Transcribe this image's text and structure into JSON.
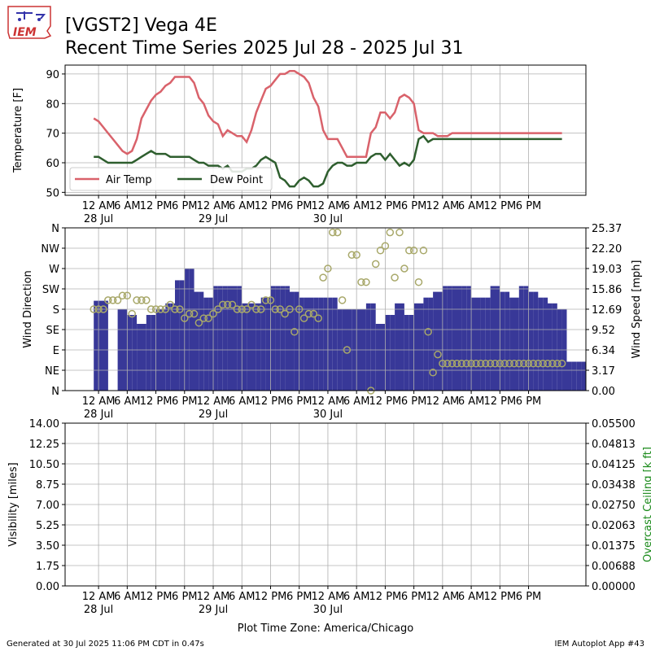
{
  "header": {
    "title_line1": "[VGST2] Vega 4E",
    "title_line2": "Recent Time Series 2025 Jul 28 - 2025 Jul 31",
    "logo_text": "IEM"
  },
  "footer": {
    "generated": "Generated at 30 Jul 2025 11:06 PM CDT in 0.47s",
    "app": "IEM Autoplot App #43",
    "timezone": "Plot Time Zone: America/Chicago"
  },
  "colors": {
    "air_temp": "#d9626b",
    "dew_point": "#2e5e2e",
    "wind_bar": "#383898",
    "wind_dir_marker": "#a8a86a",
    "ceiling_label": "#1a8a1a",
    "grid": "#b0b0b0"
  },
  "chart_data": [
    {
      "type": "line",
      "ylabel": "Temperature [F]",
      "xlim": [
        -7,
        102
      ],
      "ylim": [
        49,
        93
      ],
      "yticks": [
        50,
        60,
        70,
        80,
        90
      ],
      "grid": true,
      "legend_position": "lower-left",
      "x_ticks": {
        "positions": [
          0,
          6,
          12,
          18,
          24,
          30,
          36,
          42,
          48,
          54,
          60,
          66,
          72,
          78,
          84,
          90
        ],
        "labels": [
          "12 AM",
          "6 AM",
          "12 PM",
          "6 PM",
          "12 AM",
          "6 AM",
          "12 PM",
          "6 PM",
          "12 AM",
          "6 AM",
          "12 PM",
          "6 PM",
          "12 AM",
          "6 AM",
          "12 PM",
          "6 PM"
        ],
        "date_labels": [
          "28 Jul",
          "",
          "",
          "",
          "29 Jul",
          "",
          "",
          "",
          "30 Jul",
          "",
          "",
          "",
          "",
          "",
          "",
          ""
        ]
      },
      "series": [
        {
          "name": "Air Temp",
          "x": [
            -1,
            0,
            1,
            2,
            3,
            4,
            5,
            6,
            7,
            8,
            9,
            10,
            11,
            12,
            13,
            14,
            15,
            16,
            17,
            18,
            19,
            20,
            21,
            22,
            23,
            24,
            25,
            26,
            27,
            28,
            29,
            30,
            31,
            32,
            33,
            34,
            35,
            36,
            37,
            38,
            39,
            40,
            41,
            42,
            43,
            44,
            45,
            46,
            47,
            48,
            49,
            50,
            51,
            52,
            53,
            54,
            55,
            56,
            57,
            58,
            59,
            60,
            61,
            62,
            63,
            64,
            65,
            66,
            67,
            68,
            69,
            70,
            71,
            72,
            73,
            74,
            75,
            76,
            77,
            78,
            79,
            80,
            81,
            82,
            83,
            84,
            85,
            86,
            87,
            88,
            89,
            90,
            91,
            92,
            93,
            94,
            95,
            96,
            97
          ],
          "values": [
            75,
            74,
            72,
            70,
            68,
            66,
            64,
            63,
            64,
            68,
            75,
            78,
            81,
            83,
            84,
            86,
            87,
            89,
            89,
            89,
            89,
            87,
            82,
            80,
            76,
            74,
            73,
            69,
            71,
            70,
            69,
            69,
            67,
            71,
            77,
            81,
            85,
            86,
            88,
            90,
            90,
            91,
            91,
            90,
            89,
            87,
            82,
            79,
            71,
            68,
            68,
            68,
            65,
            62,
            62,
            62,
            62,
            62,
            70,
            72,
            77,
            77,
            75,
            77,
            82,
            83,
            82,
            80,
            71,
            70,
            70,
            70,
            69,
            69,
            69,
            70,
            70,
            70,
            70,
            70,
            70,
            70,
            70,
            70,
            70,
            70,
            70,
            70,
            70,
            70,
            70,
            70,
            70,
            70,
            70,
            70,
            70,
            70,
            70
          ]
        },
        {
          "name": "Dew Point",
          "x": [
            -1,
            0,
            1,
            2,
            3,
            4,
            5,
            6,
            7,
            8,
            9,
            10,
            11,
            12,
            13,
            14,
            15,
            16,
            17,
            18,
            19,
            20,
            21,
            22,
            23,
            24,
            25,
            26,
            27,
            28,
            29,
            30,
            31,
            32,
            33,
            34,
            35,
            36,
            37,
            38,
            39,
            40,
            41,
            42,
            43,
            44,
            45,
            46,
            47,
            48,
            49,
            50,
            51,
            52,
            53,
            54,
            55,
            56,
            57,
            58,
            59,
            60,
            61,
            62,
            63,
            64,
            65,
            66,
            67,
            68,
            69,
            70,
            71,
            72,
            73,
            74,
            75,
            76,
            77,
            78,
            79,
            80,
            81,
            82,
            83,
            84,
            85,
            86,
            87,
            88,
            89,
            90,
            91,
            92,
            93,
            94,
            95,
            96,
            97
          ],
          "values": [
            62,
            62,
            61,
            60,
            60,
            60,
            60,
            60,
            60,
            61,
            62,
            63,
            64,
            63,
            63,
            63,
            62,
            62,
            62,
            62,
            62,
            61,
            60,
            60,
            59,
            59,
            59,
            58,
            59,
            57,
            57,
            57,
            58,
            58,
            59,
            61,
            62,
            61,
            60,
            55,
            54,
            52,
            52,
            54,
            55,
            54,
            52,
            52,
            53,
            57,
            59,
            60,
            60,
            59,
            59,
            60,
            60,
            60,
            62,
            63,
            63,
            61,
            63,
            61,
            59,
            60,
            59,
            61,
            68,
            69,
            67,
            68,
            68,
            68,
            68,
            68,
            68,
            68,
            68,
            68,
            68,
            68,
            68,
            68,
            68,
            68,
            68,
            68,
            68,
            68,
            68,
            68,
            68,
            68,
            68,
            68,
            68,
            68,
            68
          ]
        }
      ]
    },
    {
      "type": "bar",
      "ylabel": "Wind Direction",
      "y2label": "Wind Speed [mph]",
      "xlim": [
        -7,
        102
      ],
      "ylim": [
        0,
        360
      ],
      "yticks": [
        0,
        45,
        90,
        135,
        180,
        225,
        270,
        315,
        360
      ],
      "ytick_labels": [
        "N",
        "NE",
        "E",
        "SE",
        "S",
        "SW",
        "W",
        "NW",
        "N"
      ],
      "y2lim": [
        0,
        25.37
      ],
      "y2ticks": [
        0.0,
        3.17,
        6.34,
        9.52,
        12.69,
        15.86,
        19.03,
        22.2,
        25.37
      ],
      "grid": true,
      "x_ticks": {
        "positions": [
          0,
          6,
          12,
          18,
          24,
          30,
          36,
          42,
          48,
          54,
          60,
          66,
          72,
          78,
          84,
          90
        ],
        "labels": [
          "12 AM",
          "6 AM",
          "12 PM",
          "6 PM",
          "12 AM",
          "6 AM",
          "12 PM",
          "6 PM",
          "12 AM",
          "6 AM",
          "12 PM",
          "6 PM",
          "12 AM",
          "6 AM",
          "12 PM",
          "6 PM"
        ],
        "date_labels": [
          "28 Jul",
          "",
          "",
          "",
          "29 Jul",
          "",
          "",
          "",
          "30 Jul",
          "",
          "",
          "",
          "",
          "",
          "",
          ""
        ]
      },
      "wind_speed_bars": {
        "x_start": -1,
        "values": [
          14,
          14,
          14,
          0,
          0,
          12.7,
          12.7,
          11.8,
          11.8,
          10.4,
          10.4,
          11.8,
          11.8,
          12.7,
          12.7,
          13.6,
          13.6,
          17.2,
          17.2,
          19.0,
          19.0,
          15.4,
          15.4,
          14.5,
          14.5,
          16.3,
          16.3,
          16.3,
          16.3,
          16.3,
          16.3,
          13.6,
          13.6,
          13.6,
          13.6,
          14.5,
          14.5,
          16.3,
          16.3,
          16.3,
          16.3,
          15.4,
          15.4,
          14.5,
          14.5,
          14.5,
          14.5,
          14.5,
          14.5,
          14.5,
          14.5,
          12.7,
          12.7,
          12.7,
          12.7,
          12.7,
          12.7,
          13.6,
          13.6,
          10.4,
          10.4,
          11.8,
          11.8,
          13.6,
          13.6,
          11.8,
          11.8,
          13.6,
          13.6,
          14.5,
          14.5,
          15.4,
          15.4,
          16.3,
          16.3,
          16.3,
          16.3,
          16.3,
          16.3,
          14.5,
          14.5,
          14.5,
          14.5,
          16.3,
          16.3,
          15.4,
          15.4,
          14.5,
          14.5,
          16.3,
          16.3,
          15.4,
          15.4,
          14.5,
          14.5,
          13.6,
          13.6,
          12.7,
          12.7,
          4.5,
          4.5,
          4.5,
          4.5,
          3.6,
          2.7,
          2.7,
          1.8,
          1.8,
          0.9,
          0.9,
          0,
          0,
          0,
          0,
          0,
          0,
          0,
          0,
          0,
          0,
          0,
          0,
          0,
          0,
          0,
          0,
          0,
          0
        ]
      },
      "wind_direction_points": {
        "x": [
          -1,
          0,
          1,
          2,
          3,
          4,
          5,
          6,
          7,
          8,
          9,
          10,
          11,
          12,
          13,
          14,
          15,
          16,
          17,
          18,
          19,
          20,
          21,
          22,
          23,
          24,
          25,
          26,
          27,
          28,
          29,
          30,
          31,
          32,
          33,
          34,
          35,
          36,
          37,
          38,
          39,
          40,
          41,
          42,
          43,
          44,
          45,
          46,
          47,
          48,
          49,
          50,
          51,
          52,
          53,
          54,
          55,
          56,
          57,
          58,
          59,
          60,
          61,
          62,
          63,
          64,
          65,
          66,
          67,
          68,
          69,
          70,
          71,
          72,
          73,
          74,
          75,
          76,
          77,
          78,
          79,
          80,
          81,
          82,
          83,
          84,
          85,
          86,
          87,
          88,
          89,
          90,
          91,
          92,
          93,
          94,
          95,
          96,
          97
        ],
        "values": [
          180,
          180,
          180,
          200,
          200,
          200,
          210,
          210,
          170,
          200,
          200,
          200,
          180,
          180,
          180,
          180,
          190,
          180,
          180,
          160,
          170,
          170,
          150,
          160,
          160,
          170,
          180,
          190,
          190,
          190,
          180,
          180,
          180,
          190,
          180,
          180,
          200,
          200,
          180,
          180,
          170,
          180,
          130,
          180,
          160,
          170,
          170,
          160,
          250,
          270,
          350,
          350,
          200,
          90,
          300,
          300,
          240,
          240,
          0,
          280,
          310,
          320,
          350,
          250,
          350,
          270,
          310,
          310,
          240,
          310,
          130,
          40,
          80,
          60,
          60,
          60,
          60,
          60,
          60,
          60,
          60,
          60,
          60,
          60,
          60,
          60,
          60,
          60,
          60,
          60,
          60,
          60,
          60,
          60,
          60,
          60,
          60,
          60,
          60
        ]
      }
    },
    {
      "type": "line",
      "ylabel": "Visibility [miles]",
      "y2label": "Overcast Ceiling [k ft]",
      "xlim": [
        -7,
        102
      ],
      "ylim": [
        0,
        14
      ],
      "yticks": [
        0.0,
        1.75,
        3.5,
        5.25,
        7.0,
        8.75,
        10.5,
        12.25,
        14.0
      ],
      "y2lim": [
        0,
        0.055
      ],
      "y2ticks": [
        0.0,
        0.00688,
        0.01375,
        0.02063,
        0.0275,
        0.03438,
        0.04125,
        0.04813,
        0.055
      ],
      "grid": true,
      "x_ticks": {
        "positions": [
          0,
          6,
          12,
          18,
          24,
          30,
          36,
          42,
          48,
          54,
          60,
          66,
          72,
          78,
          84,
          90
        ],
        "labels": [
          "12 AM",
          "6 AM",
          "12 PM",
          "6 PM",
          "12 AM",
          "6 AM",
          "12 PM",
          "6 PM",
          "12 AM",
          "6 AM",
          "12 PM",
          "6 PM",
          "12 AM",
          "6 AM",
          "12 PM",
          "6 PM"
        ],
        "date_labels": [
          "28 Jul",
          "",
          "",
          "",
          "29 Jul",
          "",
          "",
          "",
          "30 Jul",
          "",
          "",
          "",
          "",
          "",
          "",
          ""
        ]
      },
      "series": []
    }
  ]
}
